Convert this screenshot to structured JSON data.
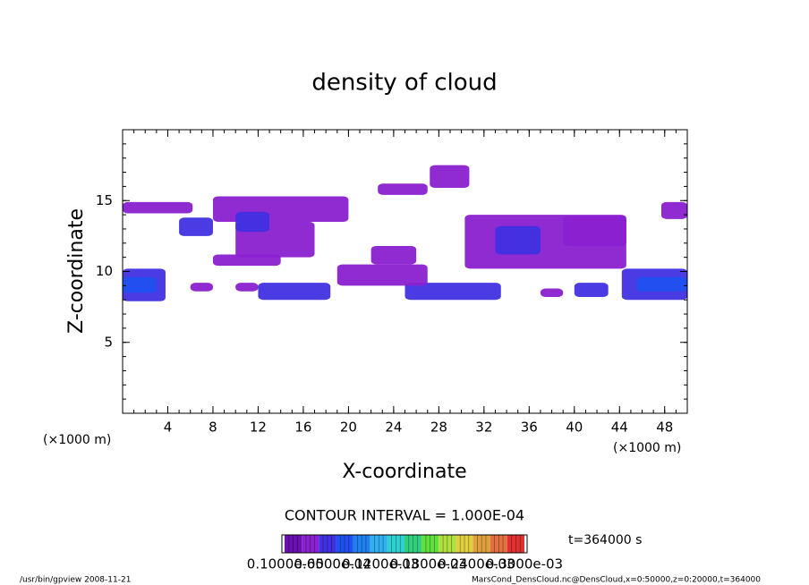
{
  "chart_data": {
    "type": "contour",
    "title": "density of cloud",
    "x_label": "X-coordinate",
    "y_label": "Z-coordinate",
    "x_unit": "(×1000 m)",
    "xlim": [
      0,
      50
    ],
    "xticks": [
      4,
      8,
      12,
      16,
      20,
      24,
      28,
      32,
      36,
      40,
      44,
      48
    ],
    "ylim": [
      0,
      20
    ],
    "yticks": [
      5,
      10,
      15
    ],
    "x_minor_step": 1,
    "y_minor_step": 1,
    "contour_interval": "CONTOUR INTERVAL = 1.000E-04",
    "time_label": "t=364000 s",
    "footer_left": "/usr/bin/gpview   2008-11-21",
    "footer_right": "MarsCond_DensCloud.nc@DensCloud,x=0:50000,z=0:20000,t=364000",
    "colorbar": {
      "clim": [
        0,
        0.0003
      ],
      "colors": [
        "#6a10b0",
        "#8a20d0",
        "#4030e0",
        "#2050f0",
        "#2080f0",
        "#30b0f0",
        "#30d0d0",
        "#30d080",
        "#60e040",
        "#b0e040",
        "#e0d040",
        "#e0a040",
        "#e07040",
        "#e03030"
      ],
      "ticks": [
        {
          "value": 1e-06,
          "label": "0.1000e-05"
        },
        {
          "value": 6e-05,
          "label": "0.6000e-04"
        },
        {
          "value": 0.00012,
          "label": "0.1200e-03"
        },
        {
          "value": 0.00018,
          "label": "0.1800e-03"
        },
        {
          "value": 0.00024,
          "label": "0.2400e-03"
        },
        {
          "value": 0.0003,
          "label": "0.3000e-03"
        }
      ]
    },
    "patches": [
      {
        "x": [
          0,
          6.2
        ],
        "z": [
          14.1,
          14.9
        ],
        "value": 2.5e-05
      },
      {
        "x": [
          8,
          20
        ],
        "z": [
          13.5,
          15.3
        ],
        "value": 2.5e-05
      },
      {
        "x": [
          10,
          17
        ],
        "z": [
          11,
          13.5
        ],
        "value": 2.5e-05
      },
      {
        "x": [
          8,
          14
        ],
        "z": [
          10.4,
          11.2
        ],
        "value": 2.5e-05
      },
      {
        "x": [
          10,
          13
        ],
        "z": [
          12.8,
          14.2
        ],
        "value": 4.5e-05
      },
      {
        "x": [
          5,
          8
        ],
        "z": [
          12.5,
          13.8
        ],
        "value": 4.5e-05
      },
      {
        "x": [
          0,
          3.8
        ],
        "z": [
          7.9,
          10.2
        ],
        "value": 4.5e-05
      },
      {
        "x": [
          0,
          3
        ],
        "z": [
          8.5,
          9.6
        ],
        "value": 8e-05
      },
      {
        "x": [
          44.2,
          50
        ],
        "z": [
          8,
          10.2
        ],
        "value": 4.5e-05
      },
      {
        "x": [
          45.5,
          50
        ],
        "z": [
          8.6,
          9.6
        ],
        "value": 8e-05
      },
      {
        "x": [
          47.7,
          50
        ],
        "z": [
          13.7,
          14.9
        ],
        "value": 2.5e-05
      },
      {
        "x": [
          12,
          18.4
        ],
        "z": [
          8,
          9.2
        ],
        "value": 4.5e-05
      },
      {
        "x": [
          25,
          33.5
        ],
        "z": [
          8,
          9.2
        ],
        "value": 4.5e-05
      },
      {
        "x": [
          19,
          27
        ],
        "z": [
          9,
          10.5
        ],
        "value": 2.5e-05
      },
      {
        "x": [
          22,
          26
        ],
        "z": [
          10.5,
          11.8
        ],
        "value": 2.5e-05
      },
      {
        "x": [
          22.6,
          27
        ],
        "z": [
          15.4,
          16.2
        ],
        "value": 2.5e-05
      },
      {
        "x": [
          27.2,
          30.7
        ],
        "z": [
          15.9,
          17.5
        ],
        "value": 2.5e-05
      },
      {
        "x": [
          30.3,
          44.6
        ],
        "z": [
          10.2,
          14
        ],
        "value": 2.5e-05
      },
      {
        "x": [
          33,
          37
        ],
        "z": [
          11.2,
          13.2
        ],
        "value": 4.5e-05
      },
      {
        "x": [
          39,
          44.6
        ],
        "z": [
          11.8,
          13.9
        ],
        "value": 2.5e-05
      },
      {
        "x": [
          6,
          8
        ],
        "z": [
          8.6,
          9.2
        ],
        "value": 2.5e-05
      },
      {
        "x": [
          40,
          43
        ],
        "z": [
          8.2,
          9.2
        ],
        "value": 4.5e-05
      },
      {
        "x": [
          37,
          39
        ],
        "z": [
          8.2,
          8.8
        ],
        "value": 2.5e-05
      },
      {
        "x": [
          10,
          12
        ],
        "z": [
          8.6,
          9.2
        ],
        "value": 2.5e-05
      }
    ]
  }
}
